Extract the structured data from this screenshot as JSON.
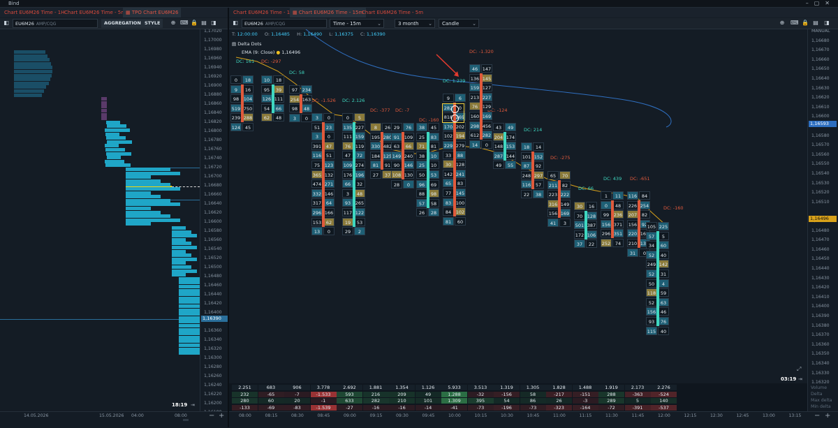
{
  "app": {
    "title": "Bind"
  },
  "left_tabs": [
    "Chart EU6M26 Time - 1H",
    "Chart EU6M26 Time - 5m",
    "TPO Chart EU6M26"
  ],
  "right_tabs": [
    "Chart EU6M26 Time - 1H",
    "Chart EU6M26 Time - 15m",
    "Chart EU6M26 Time - 5m"
  ],
  "left_toolbar": {
    "symbol": "EU6M26",
    "feed": "AMP/CQG",
    "aggregation": "AGGREGATION",
    "style": "STYLE"
  },
  "right_toolbar": {
    "symbol": "EU6M26",
    "feed": "AMP/CQG",
    "timeframe": "Time - 15m",
    "range": "3 month",
    "chart_type": "Candle"
  },
  "ohlc": {
    "t_label": "T:",
    "t": "12:00:00",
    "o_label": "O:",
    "o": "1,16485",
    "h_label": "H:",
    "h": "1,16490",
    "l_label": "L:",
    "l": "1,16375",
    "c_label": "C:",
    "c": "1,16390"
  },
  "indicators": {
    "delta_dots": "Delta Dots",
    "ema": "EMA (9: Close)",
    "ema_value": "1,16496"
  },
  "left_prices": [
    "1,17020",
    "1,17000",
    "1,16980",
    "1,16960",
    "1,16940",
    "1,16920",
    "1,16900",
    "1,16880",
    "1,16860",
    "1,16840",
    "1,16820",
    "1,16800",
    "1,16780",
    "1,16760",
    "1,16740",
    "1,16720",
    "1,16700",
    "1,16680",
    "1,16660",
    "1,16640",
    "1,16620",
    "1,16600",
    "1,16580",
    "1,16560",
    "1,16540",
    "1,16520",
    "1,16500",
    "1,16480",
    "1,16460",
    "1,16440",
    "1,16420",
    "1,16400",
    "1,16390",
    "1,16360",
    "1,16340",
    "1,16320",
    "1,16300",
    "1,16280",
    "1,16260",
    "1,16240",
    "1,16220",
    "1,16200",
    "1,16180"
  ],
  "left_price_marker": "1,16390",
  "right_prices": [
    "MANUAL",
    "1,16680",
    "1,16670",
    "1,16660",
    "1,16650",
    "1,16640",
    "1,16630",
    "1,16620",
    "1,16610",
    "1,16600",
    "1,16593",
    "1,16580",
    "1,16570",
    "1,16560",
    "1,16550",
    "1,16540",
    "1,16530",
    "1,16520",
    "1,16510",
    "1,16496",
    "1,16490",
    "1,16480",
    "1,16470",
    "1,16460",
    "1,16450",
    "1,16440",
    "1,16430",
    "1,16420",
    "1,16410",
    "1,16400",
    "1,16390",
    "1,16380",
    "1,16370",
    "1,16360",
    "1,16350",
    "1,16340",
    "1,16330",
    "1,16320",
    "1,16310"
  ],
  "right_price_markers": {
    "ema": "1,16593",
    "current": "1,16496"
  },
  "left_bottom": {
    "dates": [
      "14.05.2026",
      "15.05.2026",
      "04:00",
      "08:00"
    ],
    "clock": "18:19"
  },
  "right_bottom": {
    "times": [
      "08:00",
      "08:15",
      "08:30",
      "08:45",
      "09:00",
      "09:15",
      "09:30",
      "09:45",
      "10:00",
      "10:15",
      "10:30",
      "10:45",
      "11:00",
      "11:15",
      "11:30",
      "11:45",
      "12:00",
      "12:15",
      "12:30",
      "12:45",
      "13:00",
      "13:15"
    ],
    "clock": "03:19"
  },
  "stats_labels": [
    "Volume",
    "Delta",
    "Max delta",
    "Min delta"
  ],
  "stats": {
    "volume": [
      "2.251",
      "683",
      "906",
      "3.778",
      "2.692",
      "1.881",
      "1.354",
      "1.126",
      "5.933",
      "3.513",
      "1.319",
      "1.305",
      "1.828",
      "1.488",
      "1.919",
      "2.173",
      "2.276"
    ],
    "delta": [
      "232",
      "-65",
      "-7",
      "-1.533",
      "593",
      "216",
      "209",
      "49",
      "1.288",
      "-32",
      "-156",
      "58",
      "-217",
      "-151",
      "288",
      "-363",
      "-524"
    ],
    "max_delta": [
      "280",
      "60",
      "20",
      "-1",
      "633",
      "282",
      "210",
      "101",
      "1.309",
      "395",
      "54",
      "86",
      "26",
      "-3",
      "289",
      "5",
      "140"
    ],
    "min_delta": [
      "-133",
      "-69",
      "-83",
      "-1.539",
      "-27",
      "-16",
      "-16",
      "-14",
      "-41",
      "-73",
      "-196",
      "-73",
      "-323",
      "-164",
      "-72",
      "-391",
      "-537"
    ]
  },
  "delta_labels": [
    {
      "text": "DC: 161",
      "pos": 1
    },
    {
      "text": "DC: -297",
      "pos": 0
    },
    {
      "text": "DC: 58",
      "pos": 1
    },
    {
      "text": "DC: -1.526",
      "pos": 0
    },
    {
      "text": "DC: 2.126",
      "pos": 1
    },
    {
      "text": "DC: -377",
      "pos": 0
    },
    {
      "text": "DC: -7",
      "pos": 0
    },
    {
      "text": "DC: -160",
      "pos": 0
    },
    {
      "text": "DC: 1.239",
      "pos": 1
    },
    {
      "text": "DC: -1.320",
      "pos": 0
    },
    {
      "text": "DC: -124",
      "pos": 0
    },
    {
      "text": "DC: 214",
      "pos": 1
    },
    {
      "text": "DC: -275",
      "pos": 0
    },
    {
      "text": "DC: 66",
      "pos": 1
    },
    {
      "text": "DC: 439",
      "pos": 1
    },
    {
      "text": "DC: -651",
      "pos": 0
    },
    {
      "text": "DC: -160",
      "pos": 0
    }
  ],
  "footprint": [
    {
      "col": 0,
      "rows": [
        [
          "0",
          "18"
        ],
        [
          "9",
          "16"
        ],
        [
          "98",
          "104"
        ],
        [
          "519",
          "750"
        ],
        [
          "239",
          "288"
        ],
        [
          "124",
          "45"
        ]
      ]
    },
    {
      "col": 1,
      "rows": [
        [
          "10",
          "18"
        ],
        [
          "95",
          "39"
        ],
        [
          "126",
          "111"
        ],
        [
          "54",
          "66"
        ],
        [
          "62",
          "48"
        ]
      ]
    },
    {
      "col": 2,
      "rows": [
        [
          "97",
          "234"
        ],
        [
          "254",
          "163"
        ],
        [
          "98",
          "48"
        ],
        [
          "3",
          "0"
        ]
      ]
    },
    {
      "col": 3,
      "rows": [
        [
          "3",
          "0"
        ],
        [
          "51",
          "23"
        ],
        [
          "3",
          "0"
        ],
        [
          "391",
          "47"
        ],
        [
          "116",
          "51"
        ],
        [
          "75",
          "123"
        ],
        [
          "365",
          "132"
        ],
        [
          "474",
          "271"
        ],
        [
          "332",
          "146"
        ],
        [
          "317",
          "64"
        ],
        [
          "296",
          "166"
        ],
        [
          "153",
          "62"
        ],
        [
          "13",
          "0"
        ]
      ]
    },
    {
      "col": 4,
      "rows": [
        [
          "0",
          "5"
        ],
        [
          "135",
          "227"
        ],
        [
          "111",
          "159"
        ],
        [
          "76",
          "119"
        ],
        [
          "47",
          "72"
        ],
        [
          "109",
          "274"
        ],
        [
          "176",
          "196"
        ],
        [
          "66",
          "32"
        ],
        [
          "3",
          "48"
        ],
        [
          "93",
          "265"
        ],
        [
          "117",
          "122"
        ],
        [
          "19",
          "53"
        ],
        [
          "29",
          "2"
        ]
      ]
    },
    {
      "col": 5,
      "rows": [
        [
          "8",
          "26"
        ],
        [
          "195",
          "280"
        ],
        [
          "330",
          "482"
        ],
        [
          "184",
          "125"
        ],
        [
          "81",
          "91"
        ],
        [
          "27",
          "37"
        ]
      ]
    },
    {
      "col": 6,
      "rows": [
        [
          "29",
          "76"
        ],
        [
          "91",
          "109"
        ],
        [
          "63",
          "66"
        ],
        [
          "149",
          "240"
        ],
        [
          "90",
          "146"
        ],
        [
          "108",
          "130"
        ],
        [
          "28",
          "0"
        ]
      ]
    },
    {
      "col": 7,
      "rows": [
        [
          "38",
          "45"
        ],
        [
          "25",
          "83"
        ],
        [
          "71",
          "81"
        ],
        [
          "38",
          "10"
        ],
        [
          "25",
          "10"
        ],
        [
          "50",
          "53"
        ],
        [
          "96",
          "69"
        ],
        [
          "88",
          "98"
        ],
        [
          "57",
          "58"
        ],
        [
          "26",
          "28"
        ]
      ]
    },
    {
      "col": 8,
      "rows": [
        [
          "9",
          "6"
        ],
        [
          "282",
          "0"
        ],
        [
          "818",
          "269"
        ],
        [
          "170",
          "202"
        ],
        [
          "102",
          "194"
        ],
        [
          "229",
          "279"
        ],
        [
          "33",
          "88"
        ],
        [
          "30",
          "128"
        ],
        [
          "142",
          "241"
        ],
        [
          "65",
          "83"
        ],
        [
          "77",
          "145"
        ],
        [
          "83",
          "100"
        ],
        [
          "84",
          "102"
        ],
        [
          "81",
          "60"
        ]
      ]
    },
    {
      "col": 9,
      "rows": [
        [
          "46",
          "147"
        ],
        [
          "136",
          "145"
        ],
        [
          "159",
          "127"
        ],
        [
          "213",
          "227"
        ],
        [
          "76",
          "129"
        ],
        [
          "160",
          "169"
        ],
        [
          "298",
          "456"
        ],
        [
          "612",
          "282"
        ],
        [
          "14",
          "0"
        ]
      ]
    },
    {
      "col": 10,
      "rows": [
        [
          "43",
          "49"
        ],
        [
          "204",
          "174"
        ],
        [
          "148",
          "153"
        ],
        [
          "287",
          "144"
        ],
        [
          "49",
          "55"
        ]
      ]
    },
    {
      "col": 11,
      "rows": [
        [
          "18",
          "14"
        ],
        [
          "101",
          "152"
        ],
        [
          "87",
          "92"
        ],
        [
          "248",
          "297"
        ],
        [
          "116",
          "57"
        ],
        [
          "22",
          "38"
        ]
      ]
    },
    {
      "col": 12,
      "rows": [
        [
          "65",
          "70"
        ],
        [
          "211",
          "82"
        ],
        [
          "223",
          "222"
        ],
        [
          "316",
          "149"
        ],
        [
          "156",
          "169"
        ],
        [
          "41",
          "3"
        ]
      ]
    },
    {
      "col": 13,
      "rows": [
        [
          "30",
          "16"
        ],
        [
          "70",
          "128"
        ],
        [
          "501",
          "387"
        ],
        [
          "172",
          "106"
        ],
        [
          "37",
          "22"
        ]
      ]
    },
    {
      "col": 14,
      "rows": [
        [
          "1",
          "11"
        ],
        [
          "0",
          "48"
        ],
        [
          "99",
          "236"
        ],
        [
          "156",
          "371"
        ],
        [
          "296",
          "351"
        ],
        [
          "252",
          "74"
        ]
      ]
    },
    {
      "col": 15,
      "rows": [
        [
          "116",
          "84"
        ],
        [
          "226",
          "254"
        ],
        [
          "207",
          "82"
        ],
        [
          "156",
          "92"
        ],
        [
          "220",
          "160"
        ],
        [
          "210",
          "131"
        ],
        [
          "31",
          "0"
        ]
      ]
    },
    {
      "col": 16,
      "rows": [
        [
          "105",
          "225"
        ],
        [
          "57",
          "5"
        ],
        [
          "34",
          "60"
        ],
        [
          "52",
          "40"
        ],
        [
          "249",
          "142"
        ],
        [
          "52",
          "31"
        ],
        [
          "50",
          "4"
        ],
        [
          "118",
          "59"
        ],
        [
          "52",
          "63"
        ],
        [
          "156",
          "46"
        ],
        [
          "93",
          "76"
        ],
        [
          "115",
          "40"
        ]
      ]
    }
  ]
}
